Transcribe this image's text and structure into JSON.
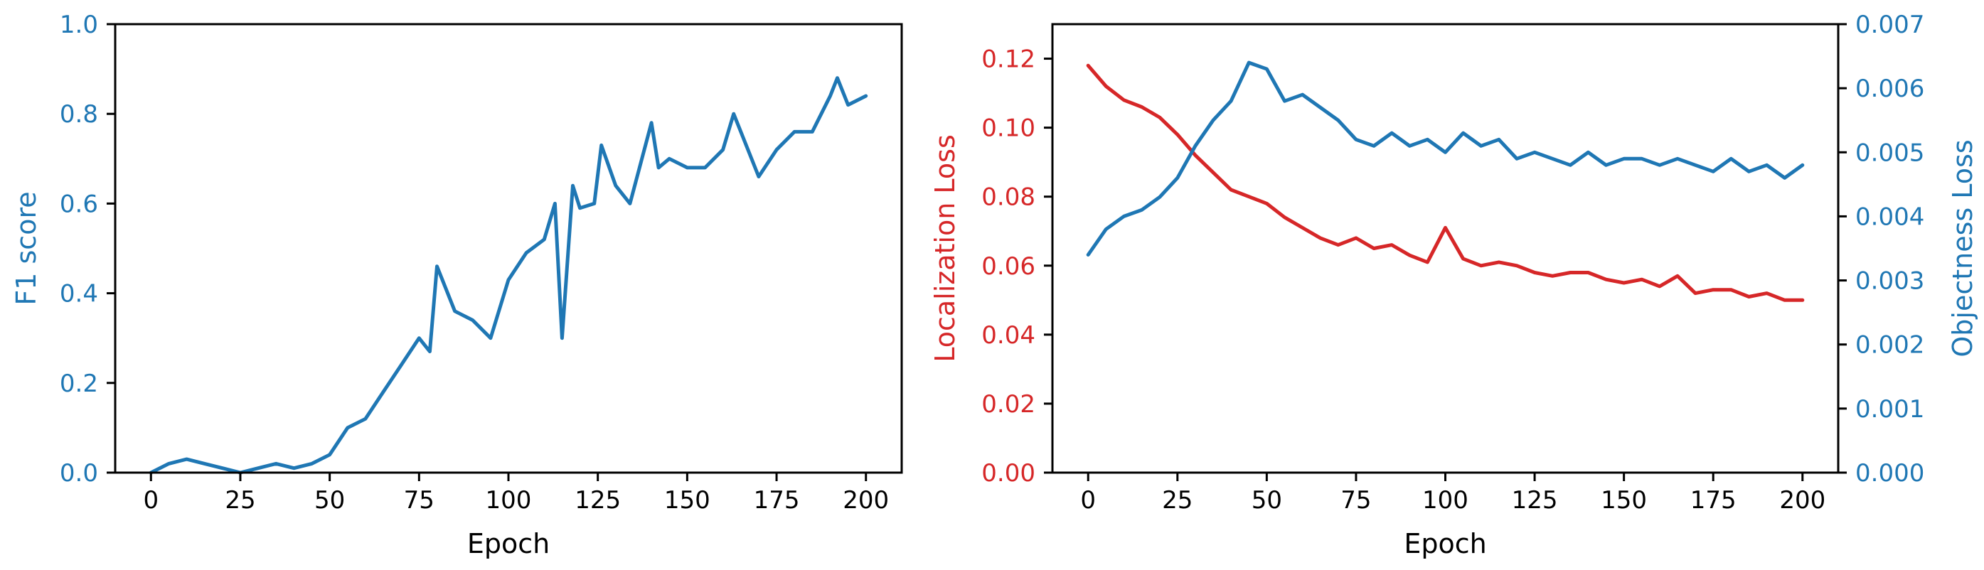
{
  "colors": {
    "blue": "#1f77b4",
    "red": "#d62728",
    "axis": "#000000"
  },
  "chart_data": [
    {
      "type": "line",
      "xlabel": "Epoch",
      "ylabel": "F1 score",
      "xlim": [
        -10,
        210
      ],
      "ylim": [
        0,
        1.0
      ],
      "xticks": [
        0,
        25,
        50,
        75,
        100,
        125,
        150,
        175,
        200
      ],
      "yticks": [
        0.0,
        0.2,
        0.4,
        0.6,
        0.8,
        1.0
      ],
      "xtick_labels": [
        "0",
        "25",
        "50",
        "75",
        "100",
        "125",
        "150",
        "175",
        "200"
      ],
      "ytick_labels": [
        "0.0",
        "0.2",
        "0.4",
        "0.6",
        "0.8",
        "1.0"
      ],
      "ylabel_color": "#1f77b4",
      "grid": false,
      "series": [
        {
          "color": "#1f77b4",
          "x": [
            0,
            5,
            10,
            15,
            20,
            25,
            30,
            35,
            40,
            45,
            50,
            55,
            60,
            65,
            70,
            75,
            78,
            80,
            85,
            90,
            95,
            100,
            105,
            110,
            113,
            115,
            118,
            120,
            124,
            126,
            130,
            134,
            140,
            142,
            145,
            150,
            155,
            160,
            163,
            165,
            170,
            175,
            180,
            185,
            190,
            192,
            195,
            200
          ],
          "y": [
            0.0,
            0.02,
            0.03,
            0.02,
            0.01,
            0.0,
            0.01,
            0.02,
            0.01,
            0.02,
            0.04,
            0.1,
            0.12,
            0.18,
            0.24,
            0.3,
            0.27,
            0.46,
            0.36,
            0.34,
            0.3,
            0.43,
            0.49,
            0.52,
            0.6,
            0.3,
            0.64,
            0.59,
            0.6,
            0.73,
            0.64,
            0.6,
            0.78,
            0.68,
            0.7,
            0.68,
            0.68,
            0.72,
            0.8,
            0.76,
            0.66,
            0.72,
            0.76,
            0.76,
            0.84,
            0.88,
            0.82,
            0.84
          ]
        }
      ]
    },
    {
      "type": "line",
      "xlabel": "Epoch",
      "ylabel": "Localization Loss",
      "ylabel_right": "Objectness Loss",
      "xlim": [
        -10,
        210
      ],
      "ylim": [
        0,
        0.13
      ],
      "ylim_right": [
        0,
        0.007
      ],
      "xticks": [
        0,
        25,
        50,
        75,
        100,
        125,
        150,
        175,
        200
      ],
      "yticks": [
        0.0,
        0.02,
        0.04,
        0.06,
        0.08,
        0.1,
        0.12
      ],
      "yticks_right": [
        0.0,
        0.001,
        0.002,
        0.003,
        0.004,
        0.005,
        0.006,
        0.007
      ],
      "xtick_labels": [
        "0",
        "25",
        "50",
        "75",
        "100",
        "125",
        "150",
        "175",
        "200"
      ],
      "ytick_labels": [
        "0.00",
        "0.02",
        "0.04",
        "0.06",
        "0.08",
        "0.10",
        "0.12"
      ],
      "ytick_labels_right": [
        "0.000",
        "0.001",
        "0.002",
        "0.003",
        "0.004",
        "0.005",
        "0.006",
        "0.007"
      ],
      "ylabel_color": "#d62728",
      "ylabel_right_color": "#1f77b4",
      "grid": false,
      "series": [
        {
          "axis": "left",
          "color": "#d62728",
          "x": [
            0,
            5,
            10,
            15,
            20,
            25,
            30,
            35,
            40,
            45,
            50,
            55,
            60,
            65,
            70,
            75,
            80,
            85,
            90,
            95,
            100,
            105,
            110,
            115,
            120,
            125,
            130,
            135,
            140,
            145,
            150,
            155,
            160,
            165,
            170,
            175,
            180,
            185,
            190,
            195,
            200
          ],
          "y": [
            0.118,
            0.112,
            0.108,
            0.106,
            0.103,
            0.098,
            0.092,
            0.087,
            0.082,
            0.08,
            0.078,
            0.074,
            0.071,
            0.068,
            0.066,
            0.068,
            0.065,
            0.066,
            0.063,
            0.061,
            0.071,
            0.062,
            0.06,
            0.061,
            0.06,
            0.058,
            0.057,
            0.058,
            0.058,
            0.056,
            0.055,
            0.056,
            0.054,
            0.057,
            0.052,
            0.053,
            0.053,
            0.051,
            0.052,
            0.05,
            0.05
          ]
        },
        {
          "axis": "right",
          "color": "#1f77b4",
          "x": [
            0,
            5,
            10,
            15,
            20,
            25,
            30,
            35,
            40,
            45,
            50,
            55,
            60,
            65,
            70,
            75,
            80,
            85,
            90,
            95,
            100,
            105,
            110,
            115,
            120,
            125,
            130,
            135,
            140,
            145,
            150,
            155,
            160,
            165,
            170,
            175,
            180,
            185,
            190,
            195,
            200
          ],
          "y": [
            0.0034,
            0.0038,
            0.004,
            0.0041,
            0.0043,
            0.0046,
            0.0051,
            0.0055,
            0.0058,
            0.0064,
            0.0063,
            0.0058,
            0.0059,
            0.0057,
            0.0055,
            0.0052,
            0.0051,
            0.0053,
            0.0051,
            0.0052,
            0.005,
            0.0053,
            0.0051,
            0.0052,
            0.0049,
            0.005,
            0.0049,
            0.0048,
            0.005,
            0.0048,
            0.0049,
            0.0049,
            0.0048,
            0.0049,
            0.0048,
            0.0047,
            0.0049,
            0.0047,
            0.0048,
            0.0046,
            0.0048
          ]
        }
      ]
    }
  ]
}
